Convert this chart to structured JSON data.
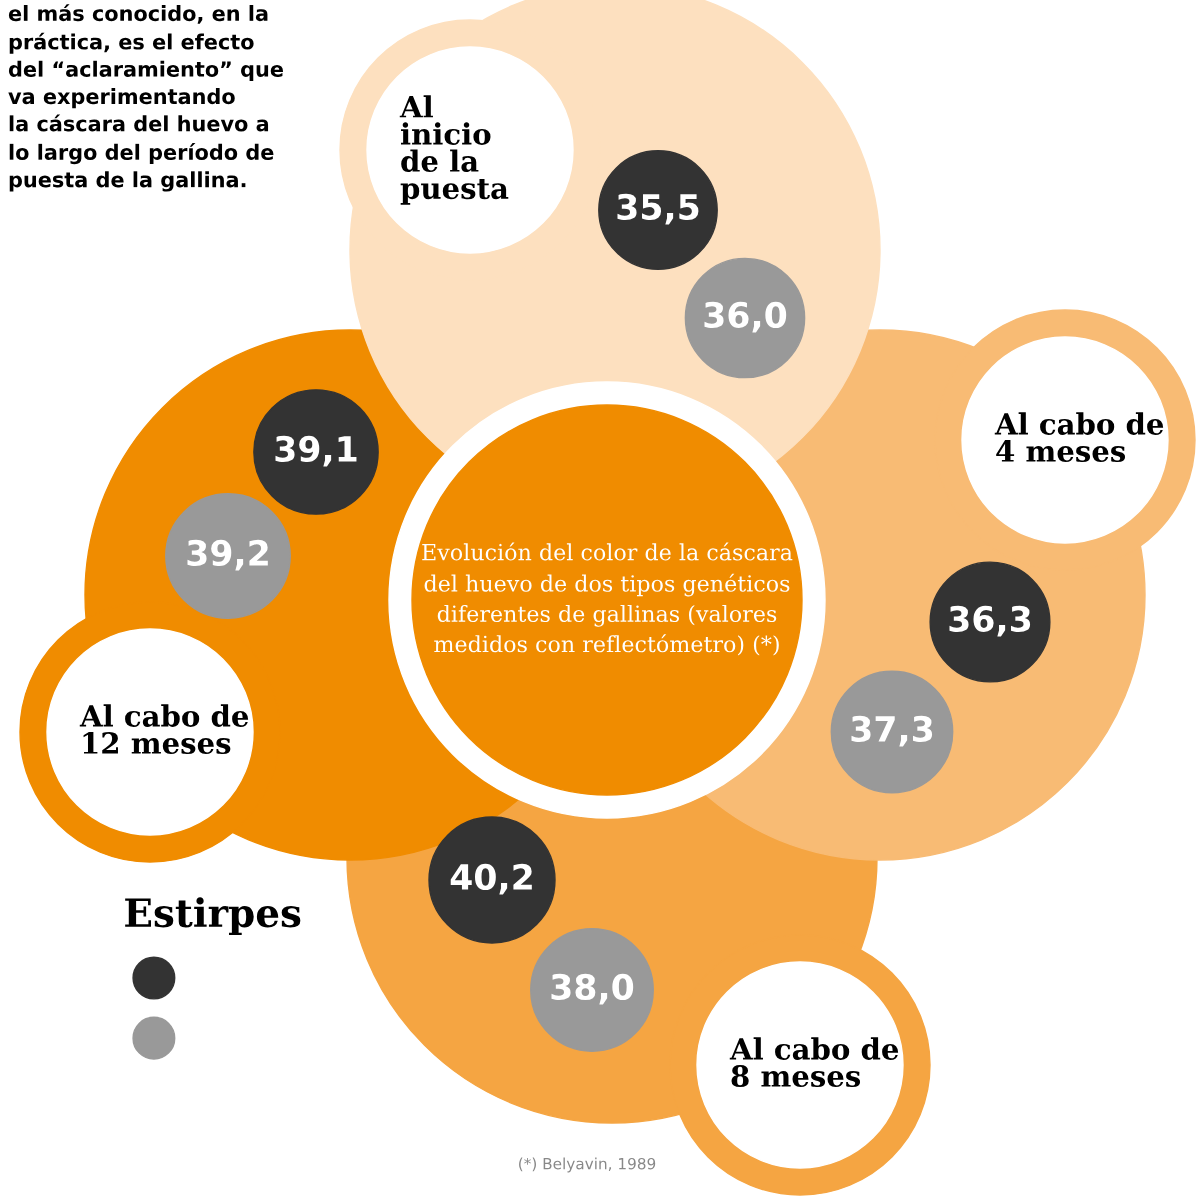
{
  "chart_data": {
    "type": "other",
    "title": "Evolución del color de la cáscara del huevo de dos tipos genéticos diferentes de gallinas (valores medidos con reflectómetro) (*)",
    "categories": [
      "Al\ninicio\nde la\npuesta",
      "Al cabo de\n4 meses",
      "Al cabo de\n8 meses",
      "Al cabo de\n12 meses"
    ],
    "colors": [
      "#fde0bf",
      "#f8bb74",
      "#f5a542",
      "#f08c00"
    ],
    "series": [
      {
        "color": "#333333",
        "values": [
          35.5,
          36.3,
          40.2,
          39.1
        ],
        "value_labels": [
          "35,5",
          "36,3",
          "40,2",
          "39,1"
        ]
      },
      {
        "color": "#999999",
        "values": [
          36.0,
          37.3,
          38.0,
          39.2
        ],
        "value_labels": [
          "36,0",
          "37,3",
          "38,0",
          "39,2"
        ]
      }
    ],
    "legend_title": "Estirpes",
    "annotations": [
      "el más conocido, en la\npráctica, es el efecto\ndel “aclaramiento” que\nva experimentando\nla cáscara del huevo a\nlo largo del período de\npuesta de la gallina.",
      "(*) Belyavin, 1989"
    ]
  }
}
